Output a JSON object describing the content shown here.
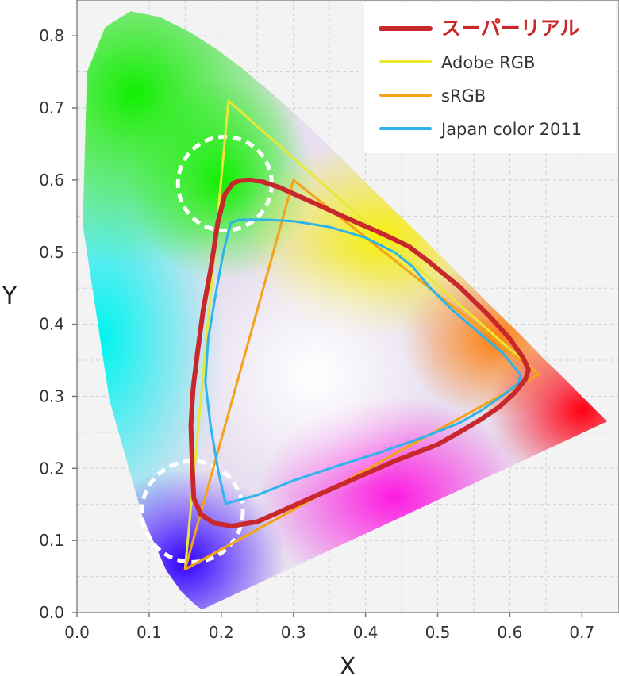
{
  "chart_data": {
    "type": "line",
    "title": "",
    "xlabel": "X",
    "ylabel": "Y",
    "xlim": [
      0.0,
      0.75
    ],
    "ylim": [
      0.0,
      0.85
    ],
    "x_ticks": [
      "0.0",
      "0.1",
      "0.2",
      "0.3",
      "0.4",
      "0.5",
      "0.6",
      "0.7"
    ],
    "y_ticks": [
      "0.0",
      "0.1",
      "0.2",
      "0.3",
      "0.4",
      "0.5",
      "0.6",
      "0.7",
      "0.8"
    ],
    "grid": true,
    "legend_position": "top-right",
    "spectral_locus": [
      [
        0.175,
        0.005
      ],
      [
        0.172,
        0.005
      ],
      [
        0.166,
        0.009
      ],
      [
        0.156,
        0.018
      ],
      [
        0.144,
        0.03
      ],
      [
        0.124,
        0.058
      ],
      [
        0.091,
        0.133
      ],
      [
        0.045,
        0.295
      ],
      [
        0.008,
        0.538
      ],
      [
        0.014,
        0.75
      ],
      [
        0.039,
        0.812
      ],
      [
        0.074,
        0.834
      ],
      [
        0.115,
        0.826
      ],
      [
        0.155,
        0.806
      ],
      [
        0.193,
        0.782
      ],
      [
        0.23,
        0.754
      ],
      [
        0.266,
        0.724
      ],
      [
        0.302,
        0.692
      ],
      [
        0.337,
        0.659
      ],
      [
        0.373,
        0.624
      ],
      [
        0.408,
        0.589
      ],
      [
        0.444,
        0.554
      ],
      [
        0.479,
        0.52
      ],
      [
        0.512,
        0.487
      ],
      [
        0.545,
        0.454
      ],
      [
        0.575,
        0.424
      ],
      [
        0.603,
        0.397
      ],
      [
        0.627,
        0.373
      ],
      [
        0.648,
        0.351
      ],
      [
        0.666,
        0.334
      ],
      [
        0.68,
        0.32
      ],
      [
        0.692,
        0.308
      ],
      [
        0.701,
        0.299
      ],
      [
        0.735,
        0.265
      ]
    ],
    "series": [
      {
        "name": "スーパーリアル",
        "color": "#c8282c",
        "points": [
          [
            0.216,
            0.595
          ],
          [
            0.225,
            0.599
          ],
          [
            0.24,
            0.6
          ],
          [
            0.256,
            0.598
          ],
          [
            0.28,
            0.59
          ],
          [
            0.32,
            0.572
          ],
          [
            0.37,
            0.549
          ],
          [
            0.42,
            0.527
          ],
          [
            0.46,
            0.508
          ],
          [
            0.49,
            0.485
          ],
          [
            0.53,
            0.452
          ],
          [
            0.57,
            0.413
          ],
          [
            0.6,
            0.38
          ],
          [
            0.618,
            0.354
          ],
          [
            0.626,
            0.337
          ],
          [
            0.622,
            0.324
          ],
          [
            0.607,
            0.305
          ],
          [
            0.585,
            0.285
          ],
          [
            0.56,
            0.268
          ],
          [
            0.53,
            0.25
          ],
          [
            0.5,
            0.233
          ],
          [
            0.44,
            0.21
          ],
          [
            0.39,
            0.188
          ],
          [
            0.34,
            0.166
          ],
          [
            0.3,
            0.148
          ],
          [
            0.25,
            0.126
          ],
          [
            0.215,
            0.12
          ],
          [
            0.19,
            0.124
          ],
          [
            0.172,
            0.136
          ],
          [
            0.162,
            0.158
          ],
          [
            0.16,
            0.2
          ],
          [
            0.158,
            0.26
          ],
          [
            0.161,
            0.31
          ],
          [
            0.167,
            0.36
          ],
          [
            0.175,
            0.42
          ],
          [
            0.186,
            0.48
          ],
          [
            0.195,
            0.54
          ],
          [
            0.205,
            0.58
          ],
          [
            0.216,
            0.595
          ]
        ]
      },
      {
        "name": "Adobe RGB",
        "color": "#e8e838",
        "points": [
          [
            0.64,
            0.33
          ],
          [
            0.21,
            0.71
          ],
          [
            0.15,
            0.06
          ],
          [
            0.64,
            0.33
          ]
        ]
      },
      {
        "name": "sRGB",
        "color": "#f5a21a",
        "points": [
          [
            0.64,
            0.33
          ],
          [
            0.3,
            0.6
          ],
          [
            0.15,
            0.06
          ],
          [
            0.64,
            0.33
          ]
        ]
      },
      {
        "name": "Japan color 2011",
        "color": "#2db4ec",
        "points": [
          [
            0.217,
            0.542
          ],
          [
            0.225,
            0.545
          ],
          [
            0.26,
            0.545
          ],
          [
            0.3,
            0.543
          ],
          [
            0.35,
            0.535
          ],
          [
            0.4,
            0.52
          ],
          [
            0.44,
            0.5
          ],
          [
            0.465,
            0.48
          ],
          [
            0.49,
            0.45
          ],
          [
            0.52,
            0.42
          ],
          [
            0.555,
            0.39
          ],
          [
            0.59,
            0.36
          ],
          [
            0.615,
            0.33
          ],
          [
            0.612,
            0.318
          ],
          [
            0.59,
            0.301
          ],
          [
            0.56,
            0.28
          ],
          [
            0.53,
            0.263
          ],
          [
            0.48,
            0.243
          ],
          [
            0.42,
            0.222
          ],
          [
            0.36,
            0.203
          ],
          [
            0.3,
            0.183
          ],
          [
            0.25,
            0.163
          ],
          [
            0.206,
            0.151
          ],
          [
            0.196,
            0.195
          ],
          [
            0.185,
            0.26
          ],
          [
            0.178,
            0.32
          ],
          [
            0.182,
            0.38
          ],
          [
            0.192,
            0.44
          ],
          [
            0.203,
            0.5
          ],
          [
            0.213,
            0.54
          ],
          [
            0.217,
            0.542
          ]
        ]
      }
    ],
    "annotations": [
      {
        "kind": "dashed-circle",
        "cx": 0.205,
        "cy": 0.595,
        "r": 0.065
      },
      {
        "kind": "dashed-circle",
        "cx": 0.16,
        "cy": 0.14,
        "r": 0.07
      }
    ]
  }
}
